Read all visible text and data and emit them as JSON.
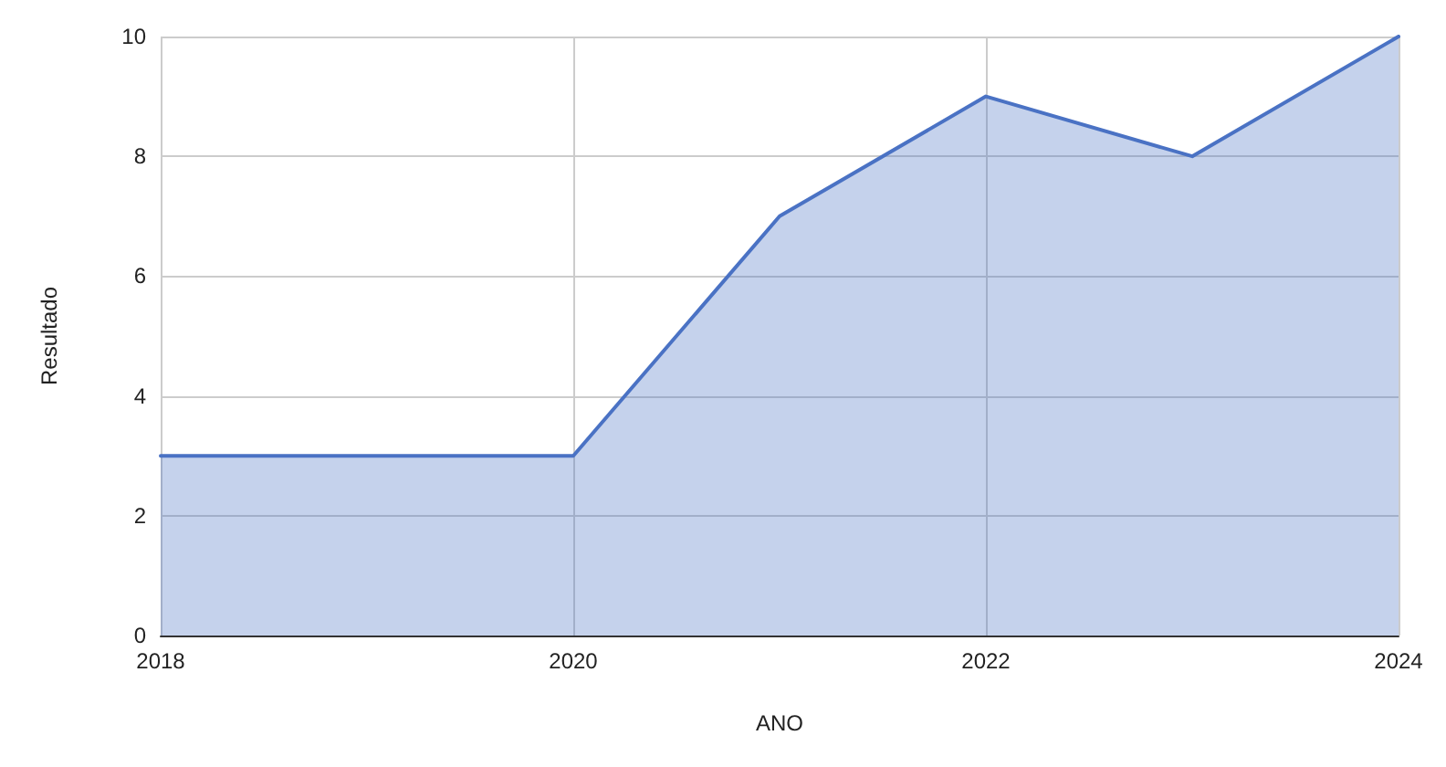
{
  "chart_data": {
    "type": "area",
    "xlabel": "ANO",
    "ylabel": "Resultado",
    "x": [
      2018,
      2019,
      2020,
      2021,
      2022,
      2023,
      2024
    ],
    "series": [
      {
        "color": "#4a72c4",
        "values": [
          3,
          3,
          3,
          7,
          9,
          8,
          10
        ]
      }
    ],
    "xlim": [
      2018,
      2024
    ],
    "xticks": [
      2018,
      2020,
      2022,
      2024
    ],
    "ylim": [
      0,
      10
    ],
    "yticks": [
      0,
      2,
      4,
      6,
      8,
      10
    ],
    "grid": true,
    "marker": "none",
    "line_style": "solid"
  }
}
